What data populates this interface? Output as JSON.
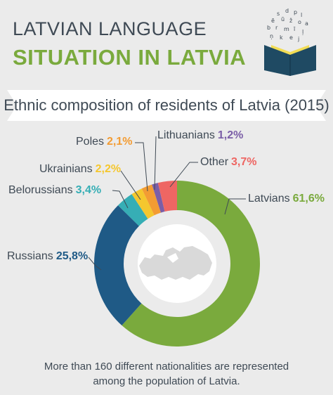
{
  "header": {
    "title_line1": "LATVIAN LANGUAGE",
    "title_line2": "SITUATION IN LATVIA"
  },
  "logo": {
    "icon": "open-book-letters-icon",
    "color": "#1f4a63",
    "page_color": "#f2dd55"
  },
  "chart_data": {
    "type": "pie",
    "title": "Ethnic composition of residents of Latvia (2015)",
    "donut": true,
    "center_graphic": "latvia-map-silhouette",
    "series": [
      {
        "name": "Latvians",
        "value": 61.6,
        "label": "61,6%",
        "color": "#7aaa3d"
      },
      {
        "name": "Russians",
        "value": 25.8,
        "label": "25,8%",
        "color": "#1f5a86"
      },
      {
        "name": "Belorussians",
        "value": 3.4,
        "label": "3,4%",
        "color": "#36aeb5"
      },
      {
        "name": "Ukrainians",
        "value": 2.2,
        "label": "2,2%",
        "color": "#f5c72e"
      },
      {
        "name": "Poles",
        "value": 2.1,
        "label": "2,1%",
        "color": "#f39c33"
      },
      {
        "name": "Lithuanians",
        "value": 1.2,
        "label": "1,2%",
        "color": "#7b5ea7"
      },
      {
        "name": "Other",
        "value": 3.7,
        "label": "3,7%",
        "color": "#ee6663"
      }
    ]
  },
  "footer": {
    "line1": "More than 160 different nationalities are represented",
    "line2": "among the population of Latvia."
  }
}
